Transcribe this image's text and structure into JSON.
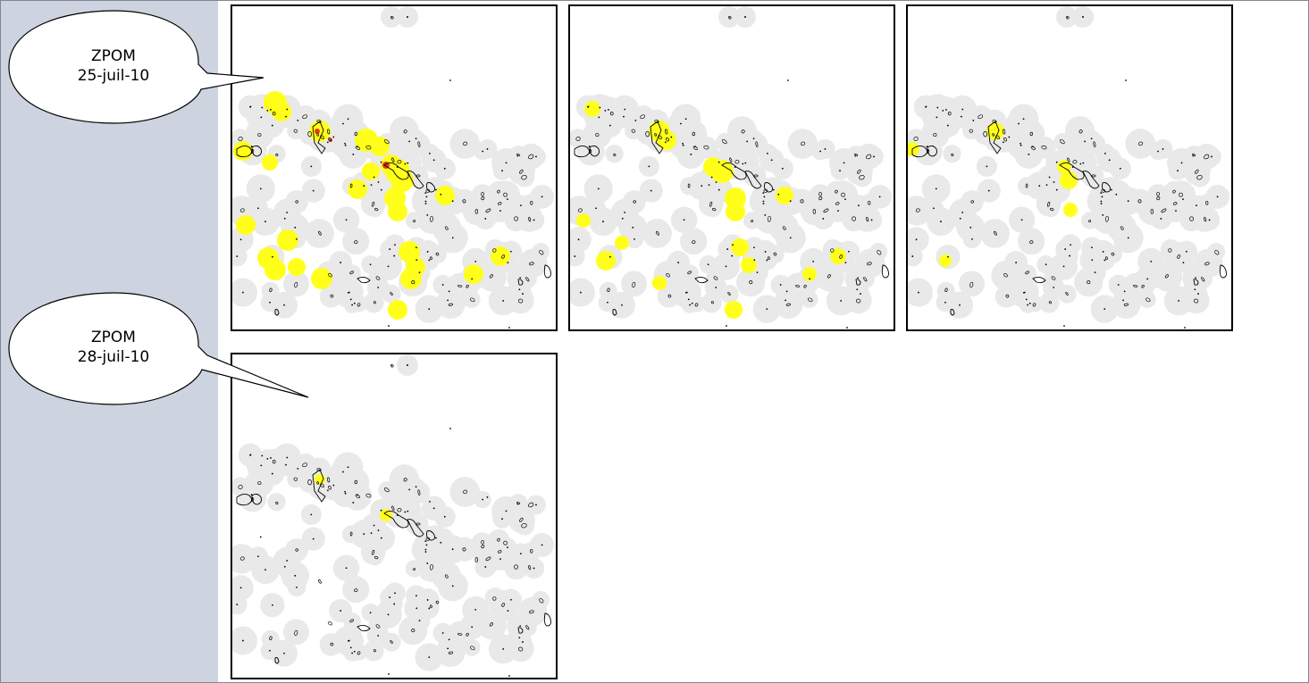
{
  "callouts": [
    {
      "line1": "ZPOM",
      "line2": "25-juil-10"
    },
    {
      "line1": "ZPOM",
      "line2": "28-juil-10"
    }
  ],
  "colors": {
    "sidebar": "#cdd3df",
    "buffer": "#e9e9e9",
    "highlight": "#ffff1a",
    "hotspot": "#e83a1a",
    "outline": "#000000"
  },
  "maps": [
    {
      "label": "map-1",
      "highlight_level": "high",
      "hotspot": true
    },
    {
      "label": "map-2",
      "highlight_level": "medium",
      "hotspot": false
    },
    {
      "label": "map-3",
      "highlight_level": "low",
      "hotspot": false
    },
    {
      "label": "map-4",
      "highlight_level": "minimal",
      "hotspot": false
    }
  ]
}
